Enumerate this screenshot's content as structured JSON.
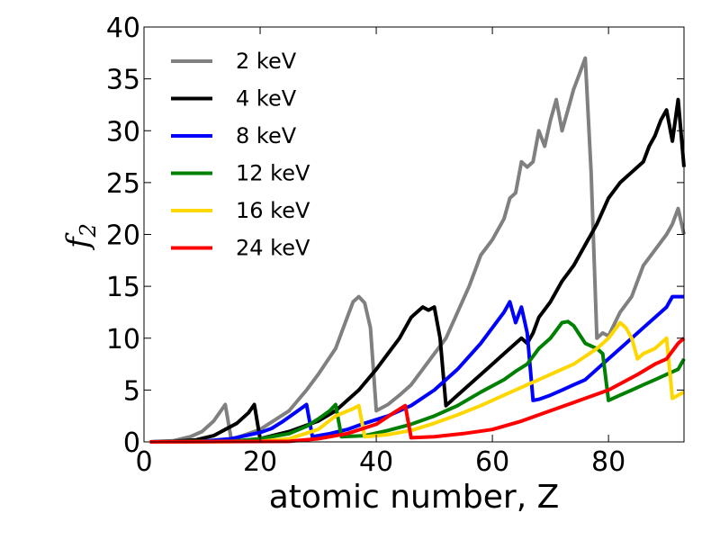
{
  "chart_data": {
    "type": "line",
    "title": "",
    "xlabel": "atomic number, Z",
    "ylabel": "f",
    "ylabel_subscript": "2",
    "xlim": [
      0,
      93
    ],
    "ylim": [
      0,
      40
    ],
    "xticks": [
      0,
      20,
      40,
      60,
      80
    ],
    "yticks": [
      0,
      5,
      10,
      15,
      20,
      25,
      30,
      35,
      40
    ],
    "legend_position": "upper-left",
    "grid": false,
    "series": [
      {
        "name": "2 keV",
        "color": "#808080",
        "points": [
          [
            1,
            0
          ],
          [
            5,
            0.1
          ],
          [
            8,
            0.5
          ],
          [
            10,
            1
          ],
          [
            12,
            2
          ],
          [
            14,
            3.6
          ],
          [
            15,
            0.3
          ],
          [
            16,
            0.4
          ],
          [
            20,
            1.2
          ],
          [
            25,
            3
          ],
          [
            28,
            5
          ],
          [
            30,
            6.5
          ],
          [
            33,
            9
          ],
          [
            35,
            12
          ],
          [
            36,
            13.5
          ],
          [
            37,
            14
          ],
          [
            38,
            13.4
          ],
          [
            39,
            11
          ],
          [
            40,
            3
          ],
          [
            42,
            3.6
          ],
          [
            44,
            4.5
          ],
          [
            46,
            5.5
          ],
          [
            48,
            7
          ],
          [
            50,
            8.5
          ],
          [
            52,
            10
          ],
          [
            54,
            12.5
          ],
          [
            56,
            15
          ],
          [
            58,
            18
          ],
          [
            60,
            19.5
          ],
          [
            62,
            21.5
          ],
          [
            63,
            23.5
          ],
          [
            64,
            24
          ],
          [
            65,
            27
          ],
          [
            66,
            26.5
          ],
          [
            67,
            27
          ],
          [
            68,
            30
          ],
          [
            69,
            28.5
          ],
          [
            70,
            31
          ],
          [
            71,
            33
          ],
          [
            72,
            30
          ],
          [
            73,
            32
          ],
          [
            74,
            34
          ],
          [
            75,
            35.5
          ],
          [
            76,
            37
          ],
          [
            77,
            26
          ],
          [
            78,
            10
          ],
          [
            79,
            10.5
          ],
          [
            80,
            10.2
          ],
          [
            82,
            12.5
          ],
          [
            84,
            14
          ],
          [
            86,
            17
          ],
          [
            88,
            18.5
          ],
          [
            90,
            20
          ],
          [
            91,
            21
          ],
          [
            92,
            22.5
          ],
          [
            93,
            20
          ]
        ]
      },
      {
        "name": "4 keV",
        "color": "#000000",
        "points": [
          [
            1,
            0
          ],
          [
            5,
            0.05
          ],
          [
            9,
            0.2
          ],
          [
            12,
            0.6
          ],
          [
            14,
            1.2
          ],
          [
            16,
            1.8
          ],
          [
            18,
            2.8
          ],
          [
            19,
            3.6
          ],
          [
            20,
            0.3
          ],
          [
            25,
            1
          ],
          [
            30,
            2
          ],
          [
            33,
            3
          ],
          [
            35,
            4
          ],
          [
            37,
            5
          ],
          [
            40,
            7
          ],
          [
            42,
            8.5
          ],
          [
            44,
            10
          ],
          [
            46,
            12
          ],
          [
            47,
            12.5
          ],
          [
            48,
            13
          ],
          [
            49,
            12.7
          ],
          [
            50,
            13
          ],
          [
            51,
            10
          ],
          [
            52,
            3.5
          ],
          [
            54,
            4.5
          ],
          [
            56,
            5.5
          ],
          [
            58,
            6.5
          ],
          [
            60,
            7.5
          ],
          [
            62,
            8.5
          ],
          [
            64,
            9.5
          ],
          [
            65,
            10
          ],
          [
            66,
            9.5
          ],
          [
            67,
            10.5
          ],
          [
            68,
            12
          ],
          [
            70,
            13.5
          ],
          [
            72,
            15.5
          ],
          [
            74,
            17
          ],
          [
            76,
            19
          ],
          [
            78,
            21
          ],
          [
            80,
            23.5
          ],
          [
            82,
            25
          ],
          [
            84,
            26
          ],
          [
            86,
            27
          ],
          [
            87,
            28.5
          ],
          [
            88,
            29.5
          ],
          [
            89,
            31
          ],
          [
            90,
            32
          ],
          [
            91,
            29
          ],
          [
            92,
            33
          ],
          [
            93,
            26.5
          ]
        ]
      },
      {
        "name": "8 keV",
        "color": "#0000ff",
        "points": [
          [
            1,
            0
          ],
          [
            10,
            0.05
          ],
          [
            15,
            0.3
          ],
          [
            20,
            0.9
          ],
          [
            22,
            1.3
          ],
          [
            24,
            2
          ],
          [
            26,
            2.8
          ],
          [
            28,
            3.6
          ],
          [
            29,
            0.5
          ],
          [
            32,
            0.8
          ],
          [
            35,
            1.2
          ],
          [
            38,
            1.8
          ],
          [
            42,
            2.5
          ],
          [
            46,
            3.5
          ],
          [
            50,
            5
          ],
          [
            54,
            7
          ],
          [
            58,
            9.5
          ],
          [
            60,
            11
          ],
          [
            62,
            12.5
          ],
          [
            63,
            13.5
          ],
          [
            64,
            11.5
          ],
          [
            65,
            13
          ],
          [
            66,
            10.5
          ],
          [
            67,
            4
          ],
          [
            68,
            4.1
          ],
          [
            70,
            4.5
          ],
          [
            72,
            5
          ],
          [
            74,
            5.5
          ],
          [
            76,
            6
          ],
          [
            78,
            7
          ],
          [
            80,
            8
          ],
          [
            82,
            9
          ],
          [
            84,
            10
          ],
          [
            86,
            11
          ],
          [
            88,
            12
          ],
          [
            90,
            13
          ],
          [
            91,
            14
          ],
          [
            92,
            14
          ],
          [
            93,
            14
          ]
        ]
      },
      {
        "name": "12 keV",
        "color": "#008000",
        "points": [
          [
            1,
            0
          ],
          [
            15,
            0.05
          ],
          [
            20,
            0.3
          ],
          [
            25,
            0.8
          ],
          [
            28,
            1.5
          ],
          [
            30,
            2.2
          ],
          [
            32,
            3
          ],
          [
            33,
            3.6
          ],
          [
            34,
            0.5
          ],
          [
            38,
            0.6
          ],
          [
            42,
            1.1
          ],
          [
            46,
            1.7
          ],
          [
            50,
            2.5
          ],
          [
            54,
            3.5
          ],
          [
            58,
            4.8
          ],
          [
            62,
            6
          ],
          [
            64,
            6.8
          ],
          [
            66,
            7.5
          ],
          [
            68,
            9
          ],
          [
            70,
            10
          ],
          [
            72,
            11.5
          ],
          [
            73,
            11.6
          ],
          [
            74,
            11.2
          ],
          [
            76,
            9.5
          ],
          [
            78,
            9
          ],
          [
            79,
            8.5
          ],
          [
            80,
            4
          ],
          [
            82,
            4.5
          ],
          [
            84,
            5
          ],
          [
            86,
            5.5
          ],
          [
            88,
            6
          ],
          [
            90,
            6.5
          ],
          [
            92,
            7
          ],
          [
            93,
            8
          ]
        ]
      },
      {
        "name": "16 keV",
        "color": "#ffd700",
        "points": [
          [
            1,
            0
          ],
          [
            20,
            0.05
          ],
          [
            25,
            0.3
          ],
          [
            30,
            1.2
          ],
          [
            33,
            2.5
          ],
          [
            36,
            3.2
          ],
          [
            37,
            3.5
          ],
          [
            38,
            0.5
          ],
          [
            42,
            0.7
          ],
          [
            46,
            1.1
          ],
          [
            50,
            1.8
          ],
          [
            54,
            2.6
          ],
          [
            58,
            3.5
          ],
          [
            62,
            4.5
          ],
          [
            66,
            5.5
          ],
          [
            70,
            6.5
          ],
          [
            74,
            7.5
          ],
          [
            78,
            9
          ],
          [
            80,
            10
          ],
          [
            82,
            11.5
          ],
          [
            83,
            11
          ],
          [
            84,
            10
          ],
          [
            85,
            8
          ],
          [
            86,
            8.5
          ],
          [
            88,
            9
          ],
          [
            90,
            10
          ],
          [
            91,
            4.2
          ],
          [
            92,
            4.5
          ],
          [
            93,
            4.8
          ]
        ]
      },
      {
        "name": "24 keV",
        "color": "#ff0000",
        "points": [
          [
            1,
            0
          ],
          [
            25,
            0.05
          ],
          [
            30,
            0.3
          ],
          [
            35,
            0.8
          ],
          [
            40,
            1.7
          ],
          [
            43,
            2.8
          ],
          [
            45,
            3.5
          ],
          [
            46,
            0.4
          ],
          [
            50,
            0.5
          ],
          [
            55,
            0.8
          ],
          [
            60,
            1.2
          ],
          [
            65,
            2
          ],
          [
            70,
            3
          ],
          [
            75,
            4
          ],
          [
            80,
            5
          ],
          [
            85,
            6.5
          ],
          [
            88,
            7.5
          ],
          [
            90,
            8
          ],
          [
            92,
            9.5
          ],
          [
            93,
            10
          ]
        ]
      }
    ]
  }
}
